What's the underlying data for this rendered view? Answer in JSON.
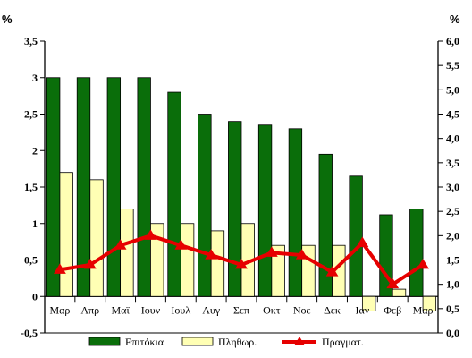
{
  "chart_data": {
    "type": "bar",
    "left_axis_unit": "%",
    "right_axis_unit": "%",
    "categories": [
      "Μαρ",
      "Απρ",
      "Μαϊ",
      "Ιουν",
      "Ιουλ",
      "Αυγ",
      "Σεπ",
      "Οκτ",
      "Νοε",
      "Δεκ",
      "Ιαν",
      "Φεβ",
      "Μαρ"
    ],
    "series": [
      {
        "name": "Επιτόκια",
        "axis": "left",
        "kind": "bar",
        "color": "#0a6e0a",
        "values": [
          3.0,
          3.0,
          3.0,
          3.0,
          2.8,
          2.5,
          2.4,
          2.35,
          2.3,
          1.95,
          1.65,
          1.12,
          1.2
        ]
      },
      {
        "name": "Πληθωρ.",
        "axis": "left",
        "kind": "bar",
        "color": "#ffffb4",
        "values": [
          1.7,
          1.6,
          1.2,
          1.0,
          1.0,
          0.9,
          1.0,
          0.7,
          0.7,
          0.7,
          -0.2,
          0.1,
          -0.2
        ]
      },
      {
        "name": "Πραγματ.",
        "axis": "right",
        "kind": "line",
        "color": "#e60000",
        "values": [
          1.3,
          1.4,
          1.8,
          2.0,
          1.8,
          1.6,
          1.4,
          1.65,
          1.6,
          1.25,
          1.85,
          1.0,
          1.4
        ]
      }
    ],
    "left_axis": {
      "min": -0.5,
      "max": 3.5,
      "step": 0.5,
      "tick_labels": [
        "-0,5",
        "0",
        "0,5",
        "1",
        "1,5",
        "2",
        "2,5",
        "3",
        "3,5"
      ]
    },
    "right_axis": {
      "min": 0.0,
      "max": 6.0,
      "step": 0.5,
      "tick_labels": [
        "0,0",
        "0,5",
        "1,0",
        "1,5",
        "2,0",
        "2,5",
        "3,0",
        "3,5",
        "4,0",
        "4,5",
        "5,0",
        "5,5",
        "6,0"
      ]
    },
    "grid": false,
    "legend_position": "bottom"
  }
}
